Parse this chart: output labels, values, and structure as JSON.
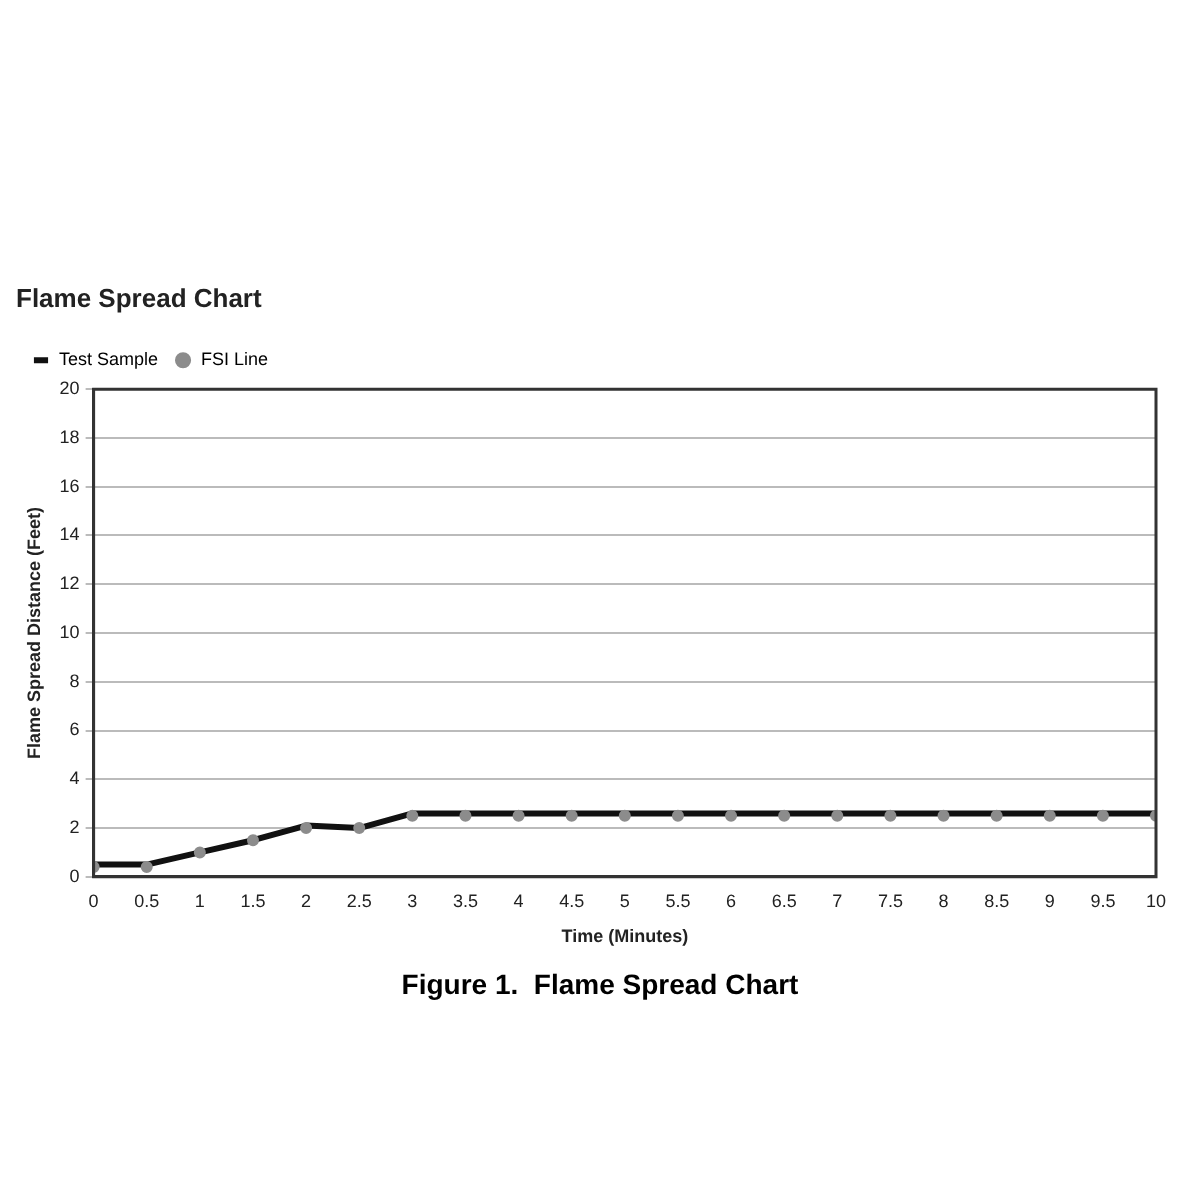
{
  "chart_data": {
    "type": "line",
    "title": "Flame Spread Chart",
    "xlabel": "Time (Minutes)",
    "ylabel": "Flame Spread Distance (Feet)",
    "x": [
      0,
      0.5,
      1,
      1.5,
      2,
      2.5,
      3,
      3.5,
      4,
      4.5,
      5,
      5.5,
      6,
      6.5,
      7,
      7.5,
      8,
      8.5,
      9,
      9.5,
      10
    ],
    "series": [
      {
        "name": "Test Sample",
        "type": "line",
        "color": "#111111",
        "marker": "none",
        "values": [
          0.5,
          0.5,
          1,
          1.5,
          2.1,
          2,
          2.6,
          2.6,
          2.6,
          2.6,
          2.6,
          2.6,
          2.6,
          2.6,
          2.6,
          2.6,
          2.6,
          2.6,
          2.6,
          2.6,
          2.6
        ]
      },
      {
        "name": "FSI Line",
        "type": "scatter",
        "color": "#8c8c8c",
        "marker": "circle",
        "values": [
          0.4,
          0.4,
          1,
          1.5,
          2,
          2,
          2.5,
          2.5,
          2.5,
          2.5,
          2.5,
          2.5,
          2.5,
          2.5,
          2.5,
          2.5,
          2.5,
          2.5,
          2.5,
          2.5,
          2.5
        ]
      }
    ],
    "xlim": [
      0,
      10
    ],
    "xticks": [
      0,
      0.5,
      1,
      1.5,
      2,
      2.5,
      3,
      3.5,
      4,
      4.5,
      5,
      5.5,
      6,
      6.5,
      7,
      7.5,
      8,
      8.5,
      9,
      9.5,
      10
    ],
    "ylim": [
      0,
      20
    ],
    "yticks": [
      0,
      2,
      4,
      6,
      8,
      10,
      12,
      14,
      16,
      18,
      20
    ],
    "grid": "y",
    "legend": "top left",
    "annotations": [
      "Figure 1.  Flame Spread Chart"
    ]
  }
}
